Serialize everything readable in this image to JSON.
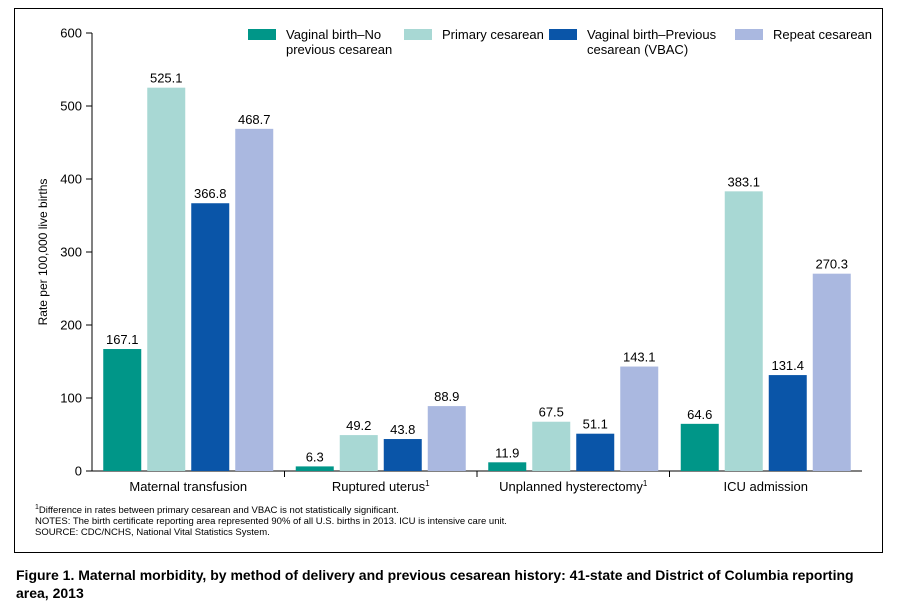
{
  "chart_data": {
    "type": "bar",
    "ylabel": "Rate per 100,000 live births",
    "ylim": [
      0,
      600
    ],
    "yticks": [
      0,
      100,
      200,
      300,
      400,
      500,
      600
    ],
    "categories": [
      "Maternal transfusion",
      "Ruptured uterus",
      "Unplanned hysterectomy",
      "ICU admission"
    ],
    "category_footnotes": [
      "",
      "1",
      "1",
      ""
    ],
    "series": [
      {
        "name": "Vaginal birth–No previous cesarean",
        "legend_lines": [
          "Vaginal birth–No",
          "previous cesarean"
        ],
        "color": "#009688",
        "values": [
          167.1,
          6.3,
          11.9,
          64.6
        ],
        "labels": [
          "167.1",
          "6.3",
          "11.9",
          "64.6"
        ]
      },
      {
        "name": "Primary cesarean",
        "legend_lines": [
          "Primary cesarean"
        ],
        "color": "#a8d8d4",
        "values": [
          525.1,
          49.2,
          67.5,
          383.1
        ],
        "labels": [
          "525.1",
          "49.2",
          "67.5",
          "383.1"
        ]
      },
      {
        "name": "Vaginal birth–Previous cesarean (VBAC)",
        "legend_lines": [
          "Vaginal birth–Previous",
          "cesarean (VBAC)"
        ],
        "color": "#0a55a8",
        "values": [
          366.8,
          43.8,
          51.1,
          131.4
        ],
        "labels": [
          "366.8",
          "43.8",
          "51.1",
          "131.4"
        ]
      },
      {
        "name": "Repeat cesarean",
        "legend_lines": [
          "Repeat cesarean"
        ],
        "color": "#aab8e0",
        "values": [
          468.7,
          88.9,
          143.1,
          270.3
        ],
        "labels": [
          "468.7",
          "88.9",
          "143.1",
          "270.3"
        ]
      }
    ],
    "legend_position": "top",
    "grid": false
  },
  "notes": {
    "footnote_marker": "1",
    "footnote": "Difference in rates between primary cesarean and VBAC is not statistically significant.",
    "notes_line": "NOTES: The birth certificate reporting area represented 90% of all U.S. births in 2013. ICU is intensive care unit.",
    "source_line": "SOURCE: CDC/NCHS, National Vital Statistics System."
  },
  "caption": "Figure 1. Maternal morbidity, by method of delivery and previous cesarean history: 41-state and District of Columbia reporting area, 2013"
}
